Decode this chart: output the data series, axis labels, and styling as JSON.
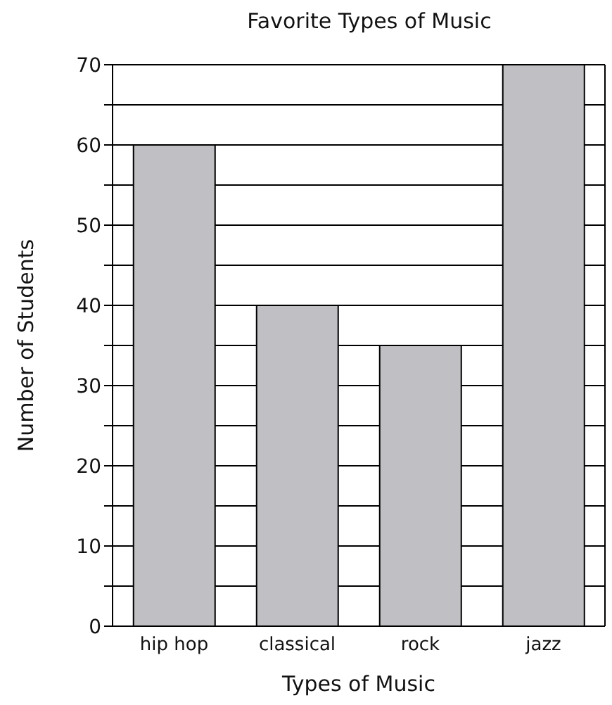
{
  "chart_data": {
    "type": "bar",
    "title": "Favorite Types of Music",
    "xlabel": "Types of Music",
    "ylabel": "Number of Students",
    "categories": [
      "hip hop",
      "classical",
      "rock",
      "jazz"
    ],
    "values": [
      60,
      40,
      35,
      70
    ],
    "color": "#c0c0c4",
    "ylim": [
      0,
      70
    ],
    "yticks": [
      0,
      {
        "value": 5,
        "label": null
      },
      10,
      {
        "value": 15,
        "label": null
      },
      20,
      {
        "value": 25,
        "label": null
      },
      30,
      {
        "value": 35,
        "label": null
      },
      40,
      {
        "value": 45,
        "label": null
      },
      50,
      {
        "value": 55,
        "label": null
      },
      60,
      {
        "value": 65,
        "label": null
      },
      70
    ],
    "grid": "y"
  }
}
